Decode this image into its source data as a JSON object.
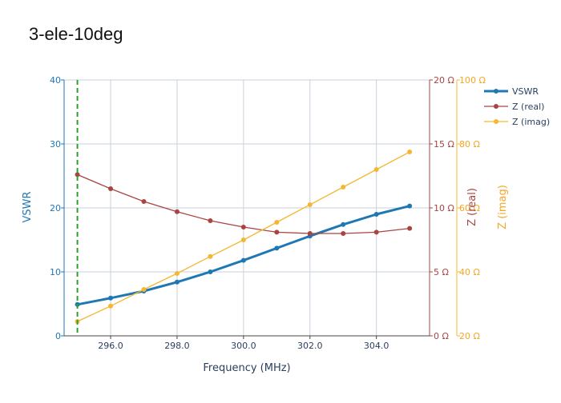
{
  "chart_data": {
    "type": "line",
    "title": "3-ele-10deg",
    "xlabel": "Frequency (MHz)",
    "xlim": [
      294.6,
      305.6
    ],
    "xticks": [
      296,
      298,
      300,
      302,
      304
    ],
    "xtick_labels": [
      "296.0",
      "298.0",
      "300.0",
      "302.0",
      "304.0"
    ],
    "x": [
      295,
      296,
      297,
      298,
      299,
      300,
      301,
      302,
      303,
      304,
      305
    ],
    "marker_line_x": 295,
    "axes": {
      "vswr": {
        "label": "VSWR",
        "range": [
          0,
          40
        ],
        "ticks": [
          0,
          10,
          20,
          30,
          40
        ],
        "tick_labels": [
          "0",
          "10",
          "20",
          "30",
          "40"
        ]
      },
      "zreal": {
        "label": "Z (real)",
        "range": [
          0,
          20
        ],
        "ticks": [
          0,
          5,
          10,
          15,
          20
        ],
        "tick_labels": [
          "0 Ω",
          "5 Ω",
          "10 Ω",
          "15 Ω",
          "20 Ω"
        ]
      },
      "zimag": {
        "label": "Z (imag)",
        "range": [
          20,
          100
        ],
        "ticks": [
          20,
          40,
          60,
          80,
          100
        ],
        "tick_labels": [
          "20 Ω",
          "40 Ω",
          "60 Ω",
          "80 Ω",
          "100 Ω"
        ]
      }
    },
    "series": [
      {
        "name": "VSWR",
        "axis": "vswr",
        "color": "#1f77b4",
        "values": [
          4.9,
          5.9,
          7.0,
          8.4,
          10.0,
          11.8,
          13.7,
          15.6,
          17.4,
          19.0,
          20.3
        ]
      },
      {
        "name": "Z (real)",
        "axis": "zreal",
        "color": "#a94442",
        "values": [
          12.6,
          11.5,
          10.5,
          9.7,
          9.0,
          8.5,
          8.1,
          8.0,
          8.0,
          8.1,
          8.4
        ]
      },
      {
        "name": "Z (imag)",
        "axis": "zimag",
        "color": "#f5b731",
        "values": [
          24.5,
          29.3,
          34.5,
          39.5,
          44.8,
          50.0,
          55.5,
          61.0,
          66.5,
          72.0,
          77.5
        ]
      }
    ],
    "grid": true,
    "legend": "top-right",
    "colors": {
      "marker_line": "#2ca02c",
      "grid": "#c9d1dc",
      "axis_text": "#2a3f5f"
    }
  }
}
